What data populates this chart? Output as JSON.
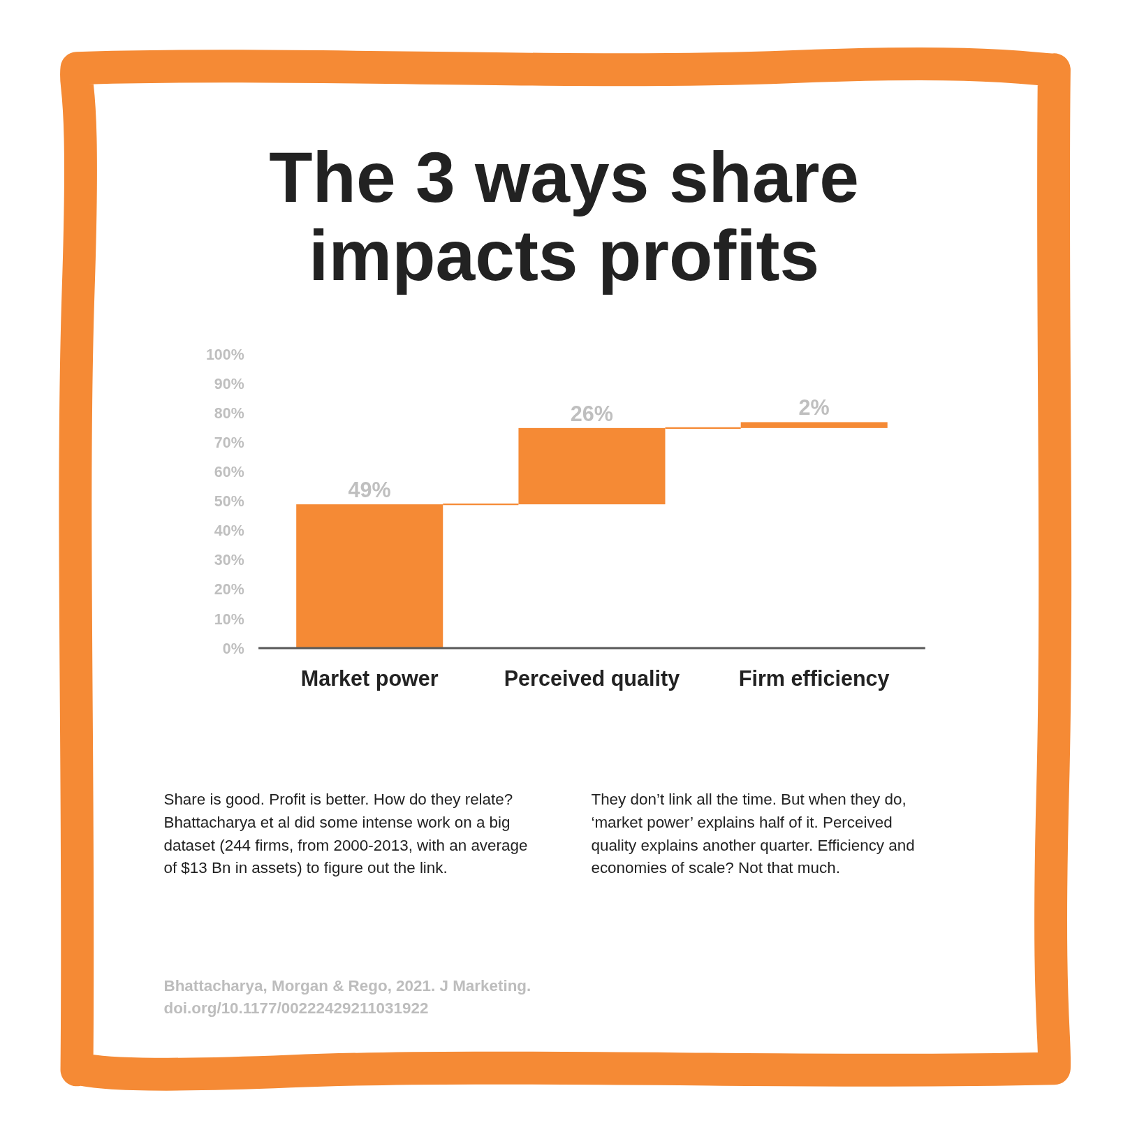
{
  "chart_data": {
    "type": "bar",
    "title": "The 3 ways share impacts profits",
    "categories": [
      "Market power",
      "Perceived quality",
      "Firm efficiency"
    ],
    "values": [
      49,
      26,
      2
    ],
    "base": [
      0,
      49,
      75
    ],
    "color": "#f58a35",
    "value_labels": [
      "49%",
      "26%",
      "2%"
    ],
    "ylim": [
      0,
      100
    ],
    "yticks": [
      {
        "value": 0,
        "label": "0%"
      },
      {
        "value": 10,
        "label": "10%"
      },
      {
        "value": 20,
        "label": "20%"
      },
      {
        "value": 30,
        "label": "30%"
      },
      {
        "value": 40,
        "label": "40%"
      },
      {
        "value": 50,
        "label": "50%"
      },
      {
        "value": 60,
        "label": "60%"
      },
      {
        "value": 70,
        "label": "70%"
      },
      {
        "value": 80,
        "label": "80%"
      },
      {
        "value": 90,
        "label": "90%"
      },
      {
        "value": 100,
        "label": "100%"
      }
    ],
    "grid": false,
    "annotations": [
      "Share is good. Profit is better. How do they relate? Bhattacharya et al did some intense work on a big dataset (244 firms, from 2000-2013, with an average of $13 Bn in assets) to figure out the link.",
      "They don’t link all the time. But when they do, ‘market power’ explains half of it. Perceived quality explains another quarter. Efficiency and economies of scale? Not that much.",
      "Bhattacharya, Morgan & Rego, 2021. J Marketing. doi.org/10.1177/00222429211031922"
    ]
  }
}
